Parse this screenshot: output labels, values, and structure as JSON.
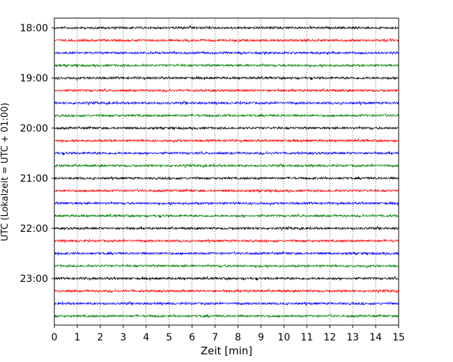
{
  "chart_data": {
    "type": "line",
    "title": "",
    "xlabel": "Zeit  [min]",
    "ylabel": "UTC (Lokalzeit = UTC + 01:00)",
    "xlim": [
      0,
      15
    ],
    "x_ticks": [
      "0",
      "1",
      "2",
      "3",
      "4",
      "5",
      "6",
      "7",
      "8",
      "9",
      "10",
      "11",
      "12",
      "13",
      "14",
      "15"
    ],
    "y_ticks": [
      "18:00",
      "19:00",
      "20:00",
      "21:00",
      "22:00",
      "23:00"
    ],
    "grid": "vertical-dotted",
    "trace_colors": [
      "#000000",
      "#ff0000",
      "#0000ff",
      "#008000"
    ],
    "series": [
      {
        "start": "18:00",
        "color": "#000000"
      },
      {
        "start": "18:15",
        "color": "#ff0000"
      },
      {
        "start": "18:30",
        "color": "#0000ff"
      },
      {
        "start": "18:45",
        "color": "#008000"
      },
      {
        "start": "19:00",
        "color": "#000000"
      },
      {
        "start": "19:15",
        "color": "#ff0000"
      },
      {
        "start": "19:30",
        "color": "#0000ff"
      },
      {
        "start": "19:45",
        "color": "#008000"
      },
      {
        "start": "20:00",
        "color": "#000000"
      },
      {
        "start": "20:15",
        "color": "#ff0000"
      },
      {
        "start": "20:30",
        "color": "#0000ff"
      },
      {
        "start": "20:45",
        "color": "#008000"
      },
      {
        "start": "21:00",
        "color": "#000000"
      },
      {
        "start": "21:15",
        "color": "#ff0000"
      },
      {
        "start": "21:30",
        "color": "#0000ff"
      },
      {
        "start": "21:45",
        "color": "#008000"
      },
      {
        "start": "22:00",
        "color": "#000000"
      },
      {
        "start": "22:15",
        "color": "#ff0000"
      },
      {
        "start": "22:30",
        "color": "#0000ff"
      },
      {
        "start": "22:45",
        "color": "#008000"
      },
      {
        "start": "23:00",
        "color": "#000000"
      },
      {
        "start": "23:15",
        "color": "#ff0000"
      },
      {
        "start": "23:30",
        "color": "#0000ff"
      },
      {
        "start": "23:45",
        "color": "#008000"
      }
    ]
  }
}
